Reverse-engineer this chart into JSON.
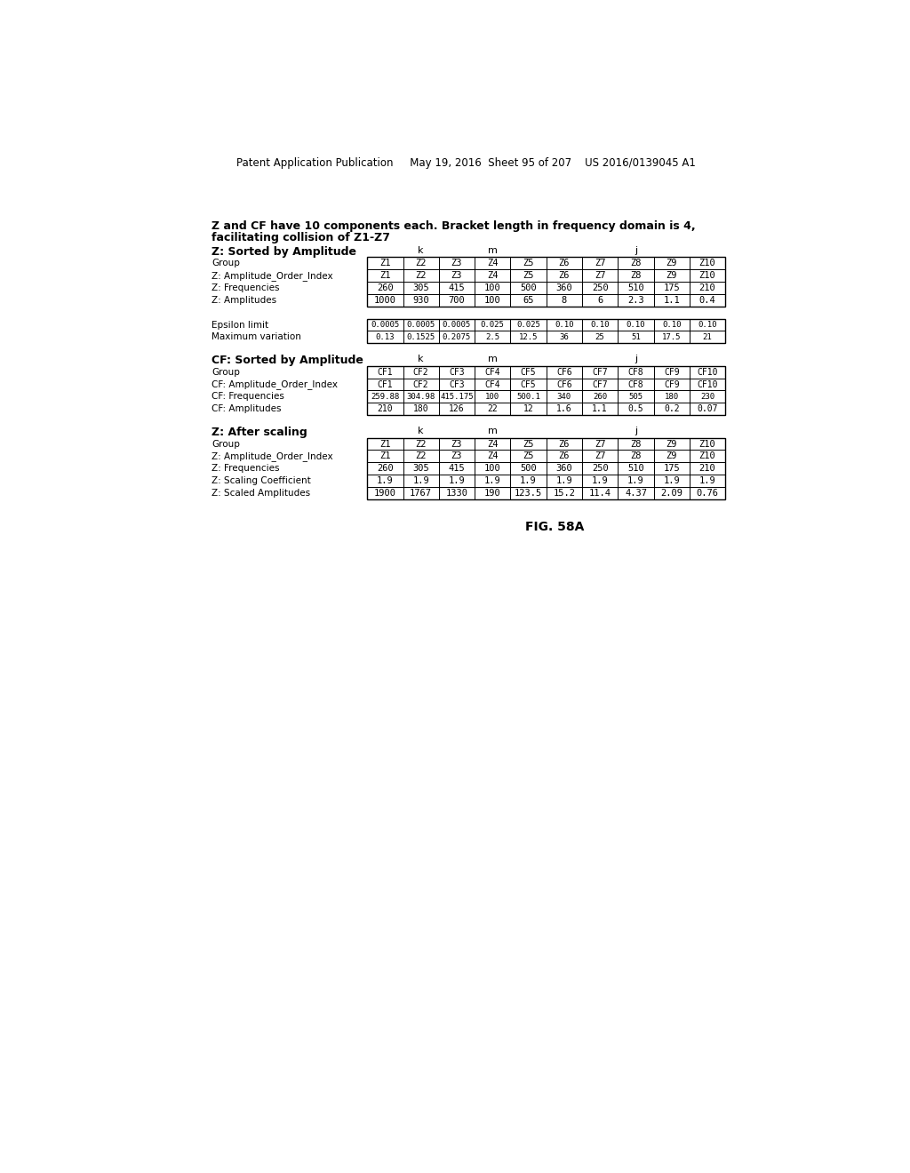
{
  "header_text": "Patent Application Publication     May 19, 2016  Sheet 95 of 207    US 2016/0139045 A1",
  "title_line1": "Z and CF have 10 components each. Bracket length in frequency domain is 4,",
  "title_line2": "facilitating collision of Z1-Z7",
  "fig_label": "FIG. 58A",
  "col_names_Z": [
    "Z1",
    "Z2",
    "Z3",
    "Z4",
    "Z5",
    "Z6",
    "Z7",
    "Z8",
    "Z9",
    "Z10"
  ],
  "col_names_CF": [
    "CF1",
    "CF2",
    "CF3",
    "CF4",
    "CF5",
    "CF6",
    "CF7",
    "CF8",
    "CF9",
    "CF10"
  ],
  "table1_section": "Z: Sorted by Amplitude",
  "table1_labels": [
    "Group",
    "Z: Amplitude_Order_Index",
    "Z: Frequencies",
    "Z: Amplitudes"
  ],
  "table1_data_row1": [
    "Z1",
    "Z2",
    "Z3",
    "Z4",
    "Z5",
    "Z6",
    "Z7",
    "Z8",
    "Z9",
    "Z10"
  ],
  "table1_data_row2": [
    "260",
    "305",
    "415",
    "100",
    "500",
    "360",
    "250",
    "510",
    "175",
    "210"
  ],
  "table1_data_row3": [
    "1000",
    "930",
    "700",
    "100",
    "65",
    "8",
    "6",
    "2.3",
    "1.1",
    "0.4"
  ],
  "table2_labels": [
    "Epsilon limit",
    "Maximum variation"
  ],
  "table2_data_row1": [
    "0.0005",
    "0.0005",
    "0.0005",
    "0.025",
    "0.025",
    "0.10",
    "0.10",
    "0.10",
    "0.10",
    "0.10"
  ],
  "table2_data_row2": [
    "0.13",
    "0.1525",
    "0.2075",
    "2.5",
    "12.5",
    "36",
    "25",
    "51",
    "17.5",
    "21"
  ],
  "table3_section": "CF: Sorted by Amplitude",
  "table3_labels": [
    "Group",
    "CF: Amplitude_Order_Index",
    "CF: Frequencies",
    "CF: Amplitudes"
  ],
  "table3_data_row1": [
    "CF1",
    "CF2",
    "CF3",
    "CF4",
    "CF5",
    "CF6",
    "CF7",
    "CF8",
    "CF9",
    "CF10"
  ],
  "table3_data_row2": [
    "259.88",
    "304.98",
    "415.175",
    "100",
    "500.1",
    "340",
    "260",
    "505",
    "180",
    "230"
  ],
  "table3_data_row3": [
    "210",
    "180",
    "126",
    "22",
    "12",
    "1.6",
    "1.1",
    "0.5",
    "0.2",
    "0.07"
  ],
  "table4_section": "Z: After scaling",
  "table4_labels": [
    "Group",
    "Z: Amplitude_Order_Index",
    "Z: Frequencies",
    "Z: Scaling Coefficient",
    "Z: Scaled Amplitudes"
  ],
  "table4_data_row1": [
    "Z1",
    "Z2",
    "Z3",
    "Z4",
    "Z5",
    "Z6",
    "Z7",
    "Z8",
    "Z9",
    "Z10"
  ],
  "table4_data_row2": [
    "260",
    "305",
    "415",
    "100",
    "500",
    "360",
    "250",
    "510",
    "175",
    "210"
  ],
  "table4_data_row3": [
    "1.9",
    "1.9",
    "1.9",
    "1.9",
    "1.9",
    "1.9",
    "1.9",
    "1.9",
    "1.9",
    "1.9"
  ],
  "table4_data_row4": [
    "1900",
    "1767",
    "1330",
    "190",
    "123.5",
    "15.2",
    "11.4",
    "4.37",
    "2.09",
    "0.76"
  ],
  "background_color": "#ffffff",
  "text_color": "#000000"
}
